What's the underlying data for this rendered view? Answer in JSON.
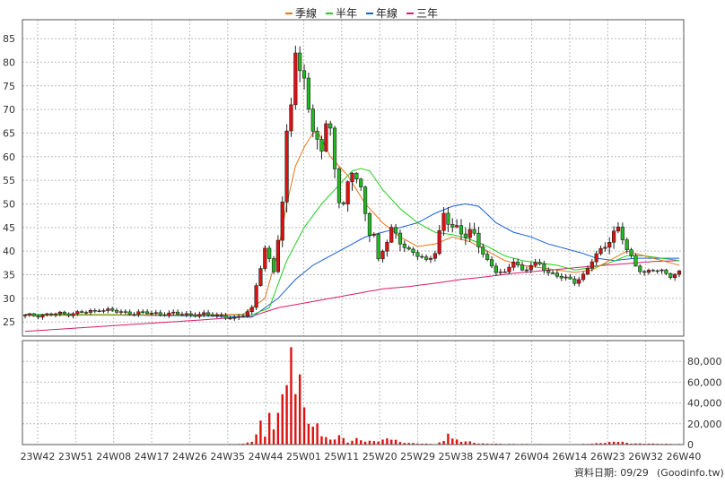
{
  "chart_data": {
    "type": "candlestick",
    "legend": {
      "placement": "top-center",
      "items": [
        {
          "label": "季線",
          "color": "#e8741a"
        },
        {
          "label": "半年",
          "color": "#22cc22"
        },
        {
          "label": "年線",
          "color": "#1a5fd8"
        },
        {
          "label": "三年",
          "color": "#d81b6a"
        }
      ]
    },
    "price_axis": {
      "ylim": [
        22,
        89
      ],
      "ticks": [
        25,
        30,
        35,
        40,
        45,
        50,
        55,
        60,
        65,
        70,
        75,
        80,
        85
      ],
      "position": "left"
    },
    "volume_axis": {
      "ylim": [
        0,
        100000
      ],
      "ticks": [
        0,
        20000,
        40000,
        60000,
        80000
      ],
      "tick_labels": [
        "0",
        "20,000",
        "40,000",
        "60,000",
        "80,000"
      ],
      "position": "right"
    },
    "x_ticks": [
      "23W42",
      "23W51",
      "24W08",
      "24W17",
      "24W26",
      "24W35",
      "24W44",
      "25W01",
      "25W11",
      "25W20",
      "25W29",
      "25W38",
      "25W47",
      "26W04",
      "26W14",
      "26W23",
      "26W32",
      "26W40"
    ],
    "grid": true,
    "colors": {
      "up": "#dd1111",
      "down": "#22bb22",
      "volume": "#dd1111",
      "grid": "#bbbbbb"
    },
    "price_anchors": [
      [
        0,
        26.3
      ],
      [
        10,
        26.8
      ],
      [
        16,
        27.2
      ],
      [
        17,
        27.8
      ],
      [
        22,
        27.0
      ],
      [
        30,
        26.8
      ],
      [
        45,
        26.4
      ],
      [
        48,
        25.5
      ],
      [
        50,
        26.5
      ],
      [
        52,
        28.0
      ],
      [
        53,
        33.0
      ],
      [
        55,
        40.0
      ],
      [
        57,
        36.0
      ],
      [
        59,
        50.0
      ],
      [
        60,
        66.0
      ],
      [
        61,
        72.0
      ],
      [
        62,
        80.0
      ],
      [
        63,
        76.0
      ],
      [
        64,
        78.0
      ],
      [
        65,
        72.0
      ],
      [
        66,
        65.0
      ],
      [
        68,
        62.0
      ],
      [
        69,
        66.0
      ],
      [
        70,
        64.0
      ],
      [
        71,
        58.0
      ],
      [
        72,
        52.0
      ],
      [
        73,
        50.0
      ],
      [
        74,
        54.0
      ],
      [
        75,
        57.0
      ],
      [
        76,
        55.0
      ],
      [
        77,
        52.0
      ],
      [
        78,
        48.0
      ],
      [
        79,
        45.0
      ],
      [
        80,
        44.0
      ],
      [
        81,
        38.0
      ],
      [
        82,
        40.0
      ],
      [
        83,
        42.0
      ],
      [
        84,
        44.0
      ],
      [
        86,
        43.0
      ],
      [
        88,
        40.0
      ],
      [
        90,
        39.0
      ],
      [
        92,
        38.0
      ],
      [
        94,
        40.0
      ],
      [
        96,
        47.0
      ],
      [
        98,
        45.0
      ],
      [
        100,
        44.5
      ],
      [
        102,
        44.0
      ],
      [
        104,
        41.0
      ],
      [
        106,
        38.0
      ],
      [
        108,
        36.0
      ],
      [
        110,
        35.0
      ],
      [
        112,
        38.0
      ],
      [
        114,
        36.0
      ],
      [
        116,
        37.0
      ],
      [
        118,
        37.0
      ],
      [
        120,
        35.5
      ],
      [
        122,
        35.0
      ],
      [
        124,
        34.0
      ],
      [
        126,
        33.5
      ],
      [
        128,
        35.0
      ],
      [
        130,
        38.0
      ],
      [
        132,
        40.0
      ],
      [
        134,
        43.0
      ],
      [
        136,
        45.0
      ],
      [
        137,
        43.0
      ],
      [
        138,
        40.0
      ],
      [
        140,
        37.0
      ],
      [
        142,
        35.5
      ],
      [
        144,
        36.0
      ],
      [
        146,
        35.5
      ],
      [
        148,
        35.0
      ],
      [
        150,
        35.5
      ]
    ],
    "ma_quarter": [
      [
        0,
        26.4
      ],
      [
        40,
        26.5
      ],
      [
        50,
        26.6
      ],
      [
        55,
        30.0
      ],
      [
        58,
        40.0
      ],
      [
        60,
        50.0
      ],
      [
        62,
        58.0
      ],
      [
        64,
        62.0
      ],
      [
        66,
        65.0
      ],
      [
        67,
        65.5
      ],
      [
        70,
        60.0
      ],
      [
        74,
        56.0
      ],
      [
        78,
        50.0
      ],
      [
        82,
        46.0
      ],
      [
        86,
        43.0
      ],
      [
        90,
        41.0
      ],
      [
        94,
        41.5
      ],
      [
        98,
        43.0
      ],
      [
        102,
        42.0
      ],
      [
        106,
        40.0
      ],
      [
        110,
        38.0
      ],
      [
        114,
        37.0
      ],
      [
        118,
        36.5
      ],
      [
        122,
        36.0
      ],
      [
        126,
        35.5
      ],
      [
        130,
        36.0
      ],
      [
        134,
        38.0
      ],
      [
        138,
        40.0
      ],
      [
        142,
        39.0
      ],
      [
        146,
        38.0
      ],
      [
        150,
        37.0
      ]
    ],
    "ma_half": [
      [
        0,
        26.6
      ],
      [
        40,
        26.5
      ],
      [
        52,
        26.5
      ],
      [
        56,
        28.0
      ],
      [
        60,
        38.0
      ],
      [
        64,
        45.0
      ],
      [
        68,
        50.0
      ],
      [
        72,
        54.0
      ],
      [
        75,
        57.0
      ],
      [
        77,
        57.5
      ],
      [
        79,
        57.0
      ],
      [
        82,
        53.0
      ],
      [
        86,
        49.0
      ],
      [
        90,
        46.0
      ],
      [
        94,
        44.0
      ],
      [
        98,
        43.5
      ],
      [
        102,
        42.5
      ],
      [
        106,
        41.0
      ],
      [
        110,
        39.0
      ],
      [
        114,
        38.0
      ],
      [
        118,
        37.5
      ],
      [
        122,
        37.0
      ],
      [
        126,
        36.0
      ],
      [
        130,
        36.5
      ],
      [
        134,
        37.5
      ],
      [
        138,
        39.0
      ],
      [
        142,
        39.0
      ],
      [
        146,
        38.5
      ],
      [
        150,
        38.0
      ]
    ],
    "ma_year": [
      [
        0,
        26.6
      ],
      [
        40,
        26.3
      ],
      [
        52,
        26.0
      ],
      [
        58,
        30.0
      ],
      [
        62,
        34.0
      ],
      [
        66,
        37.0
      ],
      [
        70,
        39.0
      ],
      [
        74,
        41.0
      ],
      [
        78,
        43.0
      ],
      [
        82,
        44.0
      ],
      [
        86,
        45.0
      ],
      [
        90,
        46.0
      ],
      [
        94,
        48.0
      ],
      [
        98,
        49.5
      ],
      [
        101,
        50.0
      ],
      [
        104,
        49.5
      ],
      [
        108,
        46.0
      ],
      [
        112,
        44.0
      ],
      [
        116,
        43.0
      ],
      [
        120,
        41.5
      ],
      [
        124,
        40.5
      ],
      [
        128,
        39.5
      ],
      [
        131,
        38.5
      ],
      [
        135,
        38.0
      ],
      [
        140,
        38.5
      ],
      [
        150,
        38.5
      ]
    ],
    "ma_3year": [
      [
        0,
        23.0
      ],
      [
        20,
        24.2
      ],
      [
        40,
        25.4
      ],
      [
        52,
        26.2
      ],
      [
        58,
        28.0
      ],
      [
        64,
        29.0
      ],
      [
        70,
        30.0
      ],
      [
        76,
        31.0
      ],
      [
        82,
        32.0
      ],
      [
        88,
        32.5
      ],
      [
        94,
        33.2
      ],
      [
        100,
        34.0
      ],
      [
        106,
        34.6
      ],
      [
        112,
        35.3
      ],
      [
        118,
        35.8
      ],
      [
        124,
        36.3
      ],
      [
        130,
        36.8
      ],
      [
        136,
        37.2
      ],
      [
        140,
        37.5
      ],
      [
        144,
        37.8
      ],
      [
        150,
        38.0
      ]
    ],
    "volume_anchors": [
      [
        0,
        300
      ],
      [
        45,
        300
      ],
      [
        50,
        700
      ],
      [
        52,
        3000
      ],
      [
        53,
        8000
      ],
      [
        54,
        20000
      ],
      [
        55,
        10000
      ],
      [
        56,
        26000
      ],
      [
        57,
        12000
      ],
      [
        58,
        36000
      ],
      [
        59,
        44000
      ],
      [
        60,
        46000
      ],
      [
        61,
        98000
      ],
      [
        62,
        48000
      ],
      [
        63,
        54000
      ],
      [
        64,
        34000
      ],
      [
        65,
        22000
      ],
      [
        66,
        14000
      ],
      [
        67,
        18000
      ],
      [
        68,
        10000
      ],
      [
        69,
        6000
      ],
      [
        70,
        4000
      ],
      [
        72,
        8000
      ],
      [
        74,
        2000
      ],
      [
        76,
        5000
      ],
      [
        78,
        3000
      ],
      [
        80,
        3000
      ],
      [
        82,
        4000
      ],
      [
        84,
        6000
      ],
      [
        86,
        2000
      ],
      [
        88,
        1500
      ],
      [
        90,
        1000
      ],
      [
        94,
        500
      ],
      [
        96,
        3000
      ],
      [
        97,
        14000
      ],
      [
        98,
        5000
      ],
      [
        100,
        3000
      ],
      [
        102,
        2500
      ],
      [
        104,
        1000
      ],
      [
        110,
        600
      ],
      [
        120,
        400
      ],
      [
        126,
        200
      ],
      [
        130,
        800
      ],
      [
        134,
        2000
      ],
      [
        136,
        3000
      ],
      [
        138,
        1500
      ],
      [
        140,
        1000
      ],
      [
        150,
        500
      ]
    ]
  },
  "footer": {
    "date_label": "資料日期: 09/29",
    "source": "(Goodinfo.tw)"
  }
}
